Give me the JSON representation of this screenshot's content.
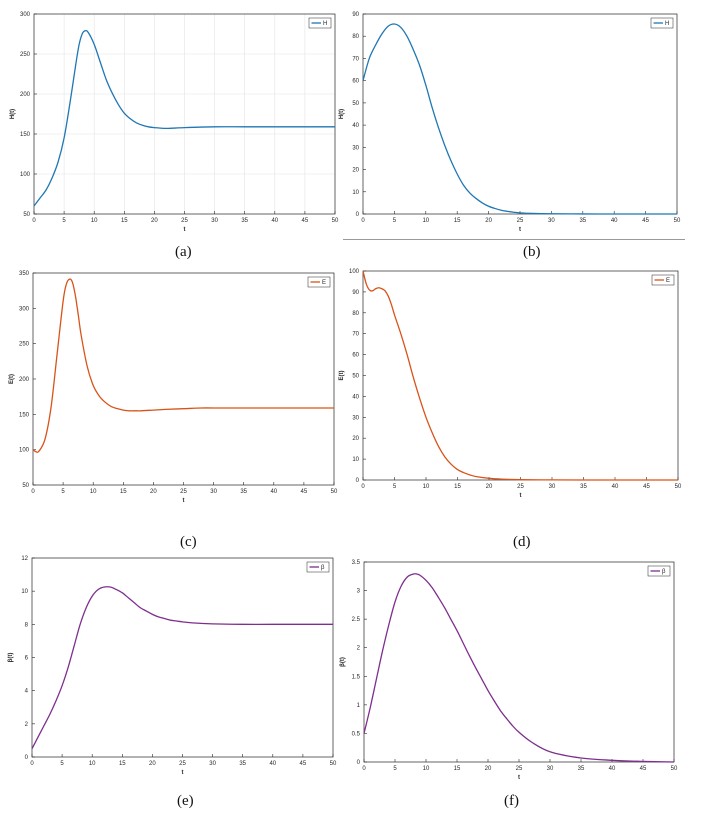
{
  "captions": [
    "(a)",
    "(b)",
    "(c)",
    "(d)",
    "(e)",
    "(f)"
  ],
  "chart_data": [
    {
      "type": "line",
      "panel": "a",
      "xlabel": "t",
      "ylabel": "H(t)",
      "xlim": [
        0,
        50
      ],
      "ylim": [
        50,
        300
      ],
      "xticks": [
        0,
        5,
        10,
        15,
        20,
        25,
        30,
        35,
        40,
        45,
        50
      ],
      "yticks": [
        50,
        100,
        150,
        200,
        250,
        300
      ],
      "grid": true,
      "legend": "top-right",
      "color": "#1f77b4",
      "series": [
        {
          "name": "H",
          "x": [
            0,
            1,
            2,
            3,
            4,
            5,
            6,
            7,
            7.5,
            8,
            8.5,
            9,
            10,
            11,
            12,
            13,
            14,
            15,
            16,
            17,
            18,
            19,
            20,
            22,
            25,
            30,
            35,
            40,
            45,
            50
          ],
          "y": [
            60,
            70,
            80,
            95,
            115,
            145,
            190,
            240,
            262,
            275,
            279,
            277,
            262,
            240,
            218,
            201,
            187,
            176,
            169,
            164,
            161,
            159,
            158,
            157,
            158,
            159,
            159,
            159,
            159,
            159
          ]
        }
      ]
    },
    {
      "type": "line",
      "panel": "b",
      "xlabel": "t",
      "ylabel": "H(t)",
      "xlim": [
        0,
        50
      ],
      "ylim": [
        0,
        90
      ],
      "xticks": [
        0,
        5,
        10,
        15,
        20,
        25,
        30,
        35,
        40,
        45,
        50
      ],
      "yticks": [
        0,
        10,
        20,
        30,
        40,
        50,
        60,
        70,
        80,
        90
      ],
      "grid": false,
      "legend": "top-right",
      "color": "#1f77b4",
      "series": [
        {
          "name": "H",
          "x": [
            0,
            1,
            2,
            3,
            4,
            5,
            6,
            7,
            8,
            9,
            10,
            11,
            12,
            13,
            14,
            15,
            16,
            17,
            18,
            19,
            20,
            21,
            22,
            23,
            24,
            25,
            27,
            30,
            35,
            40,
            45,
            50
          ],
          "y": [
            60,
            70,
            76,
            81,
            84.5,
            85.5,
            84,
            80,
            74,
            67,
            58,
            48,
            39,
            31,
            24,
            18,
            13,
            9.5,
            7,
            5,
            3.5,
            2.5,
            1.7,
            1.2,
            0.8,
            0.5,
            0.25,
            0.1,
            0.03,
            0,
            0,
            0
          ]
        }
      ]
    },
    {
      "type": "line",
      "panel": "c",
      "xlabel": "t",
      "ylabel": "E(t)",
      "xlim": [
        0,
        50
      ],
      "ylim": [
        50,
        350
      ],
      "xticks": [
        0,
        5,
        10,
        15,
        20,
        25,
        30,
        35,
        40,
        45,
        50
      ],
      "yticks": [
        50,
        100,
        150,
        200,
        250,
        300,
        350
      ],
      "grid": false,
      "legend": "top-right",
      "color": "#d95319",
      "series": [
        {
          "name": "E",
          "x": [
            0,
            0.5,
            1,
            2,
            3,
            4,
            5,
            5.5,
            6,
            6.5,
            7,
            7.5,
            8,
            9,
            10,
            11,
            12,
            13,
            14,
            15,
            16,
            17,
            18,
            20,
            22,
            25,
            28,
            30,
            35,
            40,
            45,
            50
          ],
          "y": [
            100,
            97,
            98,
            115,
            160,
            235,
            310,
            333,
            341,
            338,
            320,
            292,
            262,
            218,
            191,
            176,
            167,
            161,
            158,
            156,
            155,
            155,
            155,
            156,
            157,
            158,
            159,
            159,
            159,
            159,
            159,
            159
          ]
        }
      ]
    },
    {
      "type": "line",
      "panel": "d",
      "xlabel": "t",
      "ylabel": "E(t)",
      "xlim": [
        0,
        50
      ],
      "ylim": [
        0,
        100
      ],
      "xticks": [
        0,
        5,
        10,
        15,
        20,
        25,
        30,
        35,
        40,
        45,
        50
      ],
      "yticks": [
        0,
        10,
        20,
        30,
        40,
        50,
        60,
        70,
        80,
        90,
        100
      ],
      "grid": false,
      "legend": "top-right",
      "color": "#d95319",
      "series": [
        {
          "name": "E",
          "x": [
            0,
            0.5,
            1,
            1.5,
            2,
            2.5,
            3,
            3.5,
            4,
            4.5,
            5,
            6,
            7,
            8,
            9,
            10,
            11,
            12,
            13,
            14,
            15,
            16,
            17,
            18,
            20,
            22,
            25,
            30,
            35,
            40,
            45,
            50
          ],
          "y": [
            100,
            94,
            91,
            90.5,
            91.5,
            92,
            91.5,
            90.5,
            88,
            84,
            79,
            70,
            60,
            49,
            39,
            30,
            22.5,
            16,
            11,
            7.5,
            5,
            3.5,
            2.4,
            1.6,
            0.8,
            0.4,
            0.15,
            0.05,
            0,
            0,
            0,
            0
          ]
        }
      ]
    },
    {
      "type": "line",
      "panel": "e",
      "xlabel": "t",
      "ylabel": "β(t)",
      "xlim": [
        0,
        50
      ],
      "ylim": [
        0,
        12
      ],
      "xticks": [
        0,
        5,
        10,
        15,
        20,
        25,
        30,
        35,
        40,
        45,
        50
      ],
      "yticks": [
        0,
        2,
        4,
        6,
        8,
        10,
        12
      ],
      "grid": false,
      "legend": "top-right",
      "color": "#7e2f8e",
      "series": [
        {
          "name": "β",
          "x": [
            0,
            1,
            2,
            3,
            4,
            5,
            6,
            7,
            8,
            9,
            10,
            11,
            12,
            13,
            14,
            15,
            16,
            17,
            18,
            19,
            20,
            21,
            22,
            23,
            24,
            25,
            27,
            30,
            35,
            40,
            45,
            50
          ],
          "y": [
            0.5,
            1.2,
            1.9,
            2.6,
            3.4,
            4.3,
            5.4,
            6.7,
            8.0,
            9.0,
            9.7,
            10.1,
            10.25,
            10.25,
            10.1,
            9.9,
            9.6,
            9.3,
            9.0,
            8.8,
            8.6,
            8.45,
            8.35,
            8.25,
            8.2,
            8.15,
            8.08,
            8.03,
            8.0,
            8.0,
            8.0,
            8.0
          ]
        }
      ]
    },
    {
      "type": "line",
      "panel": "f",
      "xlabel": "t",
      "ylabel": "β(t)",
      "xlim": [
        0,
        50
      ],
      "ylim": [
        0,
        3.5
      ],
      "xticks": [
        0,
        5,
        10,
        15,
        20,
        25,
        30,
        35,
        40,
        45,
        50
      ],
      "yticks": [
        0,
        0.5,
        1,
        1.5,
        2,
        2.5,
        3,
        3.5
      ],
      "grid": false,
      "legend": "top-right",
      "color": "#7e2f8e",
      "series": [
        {
          "name": "β",
          "x": [
            0,
            1,
            2,
            3,
            4,
            5,
            6,
            7,
            8,
            8.5,
            9,
            10,
            11,
            12,
            13,
            14,
            15,
            16,
            17,
            18,
            19,
            20,
            21,
            22,
            23,
            24,
            25,
            27,
            30,
            35,
            40,
            45,
            50
          ],
          "y": [
            0.5,
            0.95,
            1.45,
            1.95,
            2.4,
            2.8,
            3.08,
            3.24,
            3.29,
            3.29,
            3.27,
            3.18,
            3.05,
            2.88,
            2.7,
            2.5,
            2.3,
            2.08,
            1.86,
            1.65,
            1.45,
            1.25,
            1.07,
            0.9,
            0.76,
            0.63,
            0.52,
            0.35,
            0.18,
            0.07,
            0.03,
            0.01,
            0.0
          ]
        }
      ]
    }
  ]
}
